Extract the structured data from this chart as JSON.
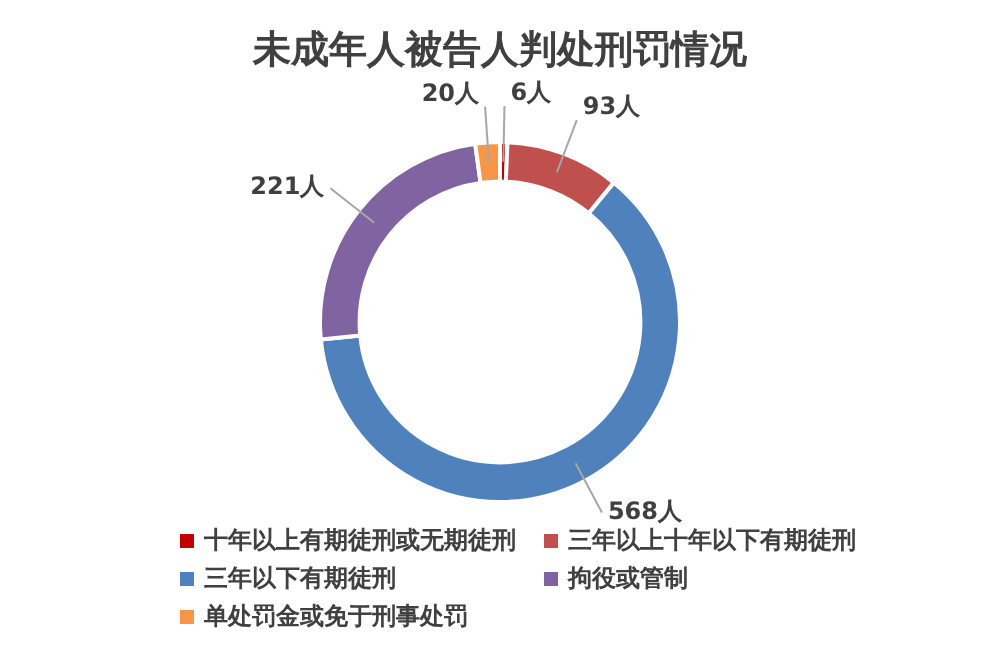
{
  "chart_data": {
    "type": "donut",
    "title": "未成年人被告人判处刑罚情况",
    "categories": [
      "十年以上有期徒刑或无期徒刑",
      "三年以上十年以下有期徒刑",
      "三年以下有期徒刑",
      "拘役或管制",
      "单处罚金或免于刑事处罚"
    ],
    "values": [
      6,
      93,
      568,
      221,
      20
    ],
    "colors": [
      "#c00000",
      "#c0504d",
      "#4f81bd",
      "#8064a2",
      "#f79646"
    ],
    "value_labels": [
      "6人",
      "93人",
      "568人",
      "221人",
      "20人"
    ],
    "legend": "bottom"
  }
}
